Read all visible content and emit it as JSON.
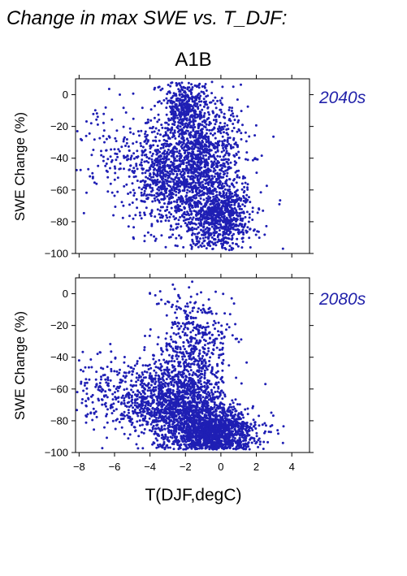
{
  "figure": {
    "title": "Change in max SWE vs. T_DJF:",
    "scenario": "A1B",
    "accent_color": "#2222aa",
    "point_color": "#1f1fb4"
  },
  "chart_data": [
    {
      "type": "scatter",
      "period_label": "2040s",
      "ylabel": "SWE Change (%)",
      "xlabel": "",
      "xlim": [
        -8.2,
        5
      ],
      "ylim": [
        -100,
        10
      ],
      "xticks": [
        -8,
        -6,
        -4,
        -2,
        0,
        2,
        4
      ],
      "yticks": [
        0,
        -20,
        -40,
        -60,
        -80,
        -100
      ],
      "ytick_labels": [
        "0",
        "−20",
        "−40",
        "−60",
        "−80",
        "−100"
      ],
      "grid": false,
      "legend": "none",
      "point_clusters": [
        {
          "x_mean": -1.2,
          "x_sd": 1.3,
          "y_mean": -45,
          "y_sd": 22,
          "n": 1500
        },
        {
          "x_mean": 0.0,
          "x_sd": 0.9,
          "y_mean": -78,
          "y_sd": 9,
          "n": 650
        },
        {
          "x_mean": -3.6,
          "x_sd": 1.1,
          "y_mean": -50,
          "y_sd": 16,
          "n": 450
        },
        {
          "x_mean": -2.0,
          "x_sd": 0.7,
          "y_mean": -8,
          "y_sd": 8,
          "n": 350
        },
        {
          "x_mean": -6.3,
          "x_sd": 0.9,
          "y_mean": -38,
          "y_sd": 14,
          "n": 90
        }
      ],
      "outliers": [
        [
          -8.1,
          -23
        ],
        [
          -7.9,
          -28
        ],
        [
          -7.6,
          -26
        ],
        [
          3.5,
          -97
        ],
        [
          3.3,
          -69
        ],
        [
          -5.7,
          0
        ],
        [
          -0.5,
          8
        ],
        [
          0.7,
          5
        ]
      ]
    },
    {
      "type": "scatter",
      "period_label": "2080s",
      "ylabel": "SWE Change (%)",
      "xlabel": "T(DJF,degC)",
      "xlim": [
        -8.2,
        5
      ],
      "ylim": [
        -100,
        10
      ],
      "xticks": [
        -8,
        -6,
        -4,
        -2,
        0,
        2,
        4
      ],
      "xtick_labels": [
        "−8",
        "−6",
        "−4",
        "−2",
        "0",
        "2",
        "4"
      ],
      "yticks": [
        0,
        -20,
        -40,
        -60,
        -80,
        -100
      ],
      "ytick_labels": [
        "0",
        "−20",
        "−40",
        "−60",
        "−80",
        "−100"
      ],
      "grid": false,
      "legend": "none",
      "point_clusters": [
        {
          "x_mean": -0.5,
          "x_sd": 1.2,
          "y_mean": -87,
          "y_sd": 8,
          "n": 1400
        },
        {
          "x_mean": -2.3,
          "x_sd": 1.2,
          "y_mean": -70,
          "y_sd": 13,
          "n": 1100
        },
        {
          "x_mean": -1.5,
          "x_sd": 1.0,
          "y_mean": -35,
          "y_sd": 18,
          "n": 500
        },
        {
          "x_mean": -4.8,
          "x_sd": 1.3,
          "y_mean": -66,
          "y_sd": 12,
          "n": 350
        },
        {
          "x_mean": -7.0,
          "x_sd": 0.7,
          "y_mean": -62,
          "y_sd": 12,
          "n": 60
        }
      ],
      "outliers": [
        [
          -8.0,
          -42
        ],
        [
          -7.9,
          -48
        ],
        [
          -6.8,
          -37
        ],
        [
          3.5,
          -94
        ],
        [
          3.2,
          -86
        ],
        [
          -4.0,
          0
        ],
        [
          -3.7,
          -1
        ],
        [
          -3.0,
          -5
        ]
      ]
    }
  ]
}
